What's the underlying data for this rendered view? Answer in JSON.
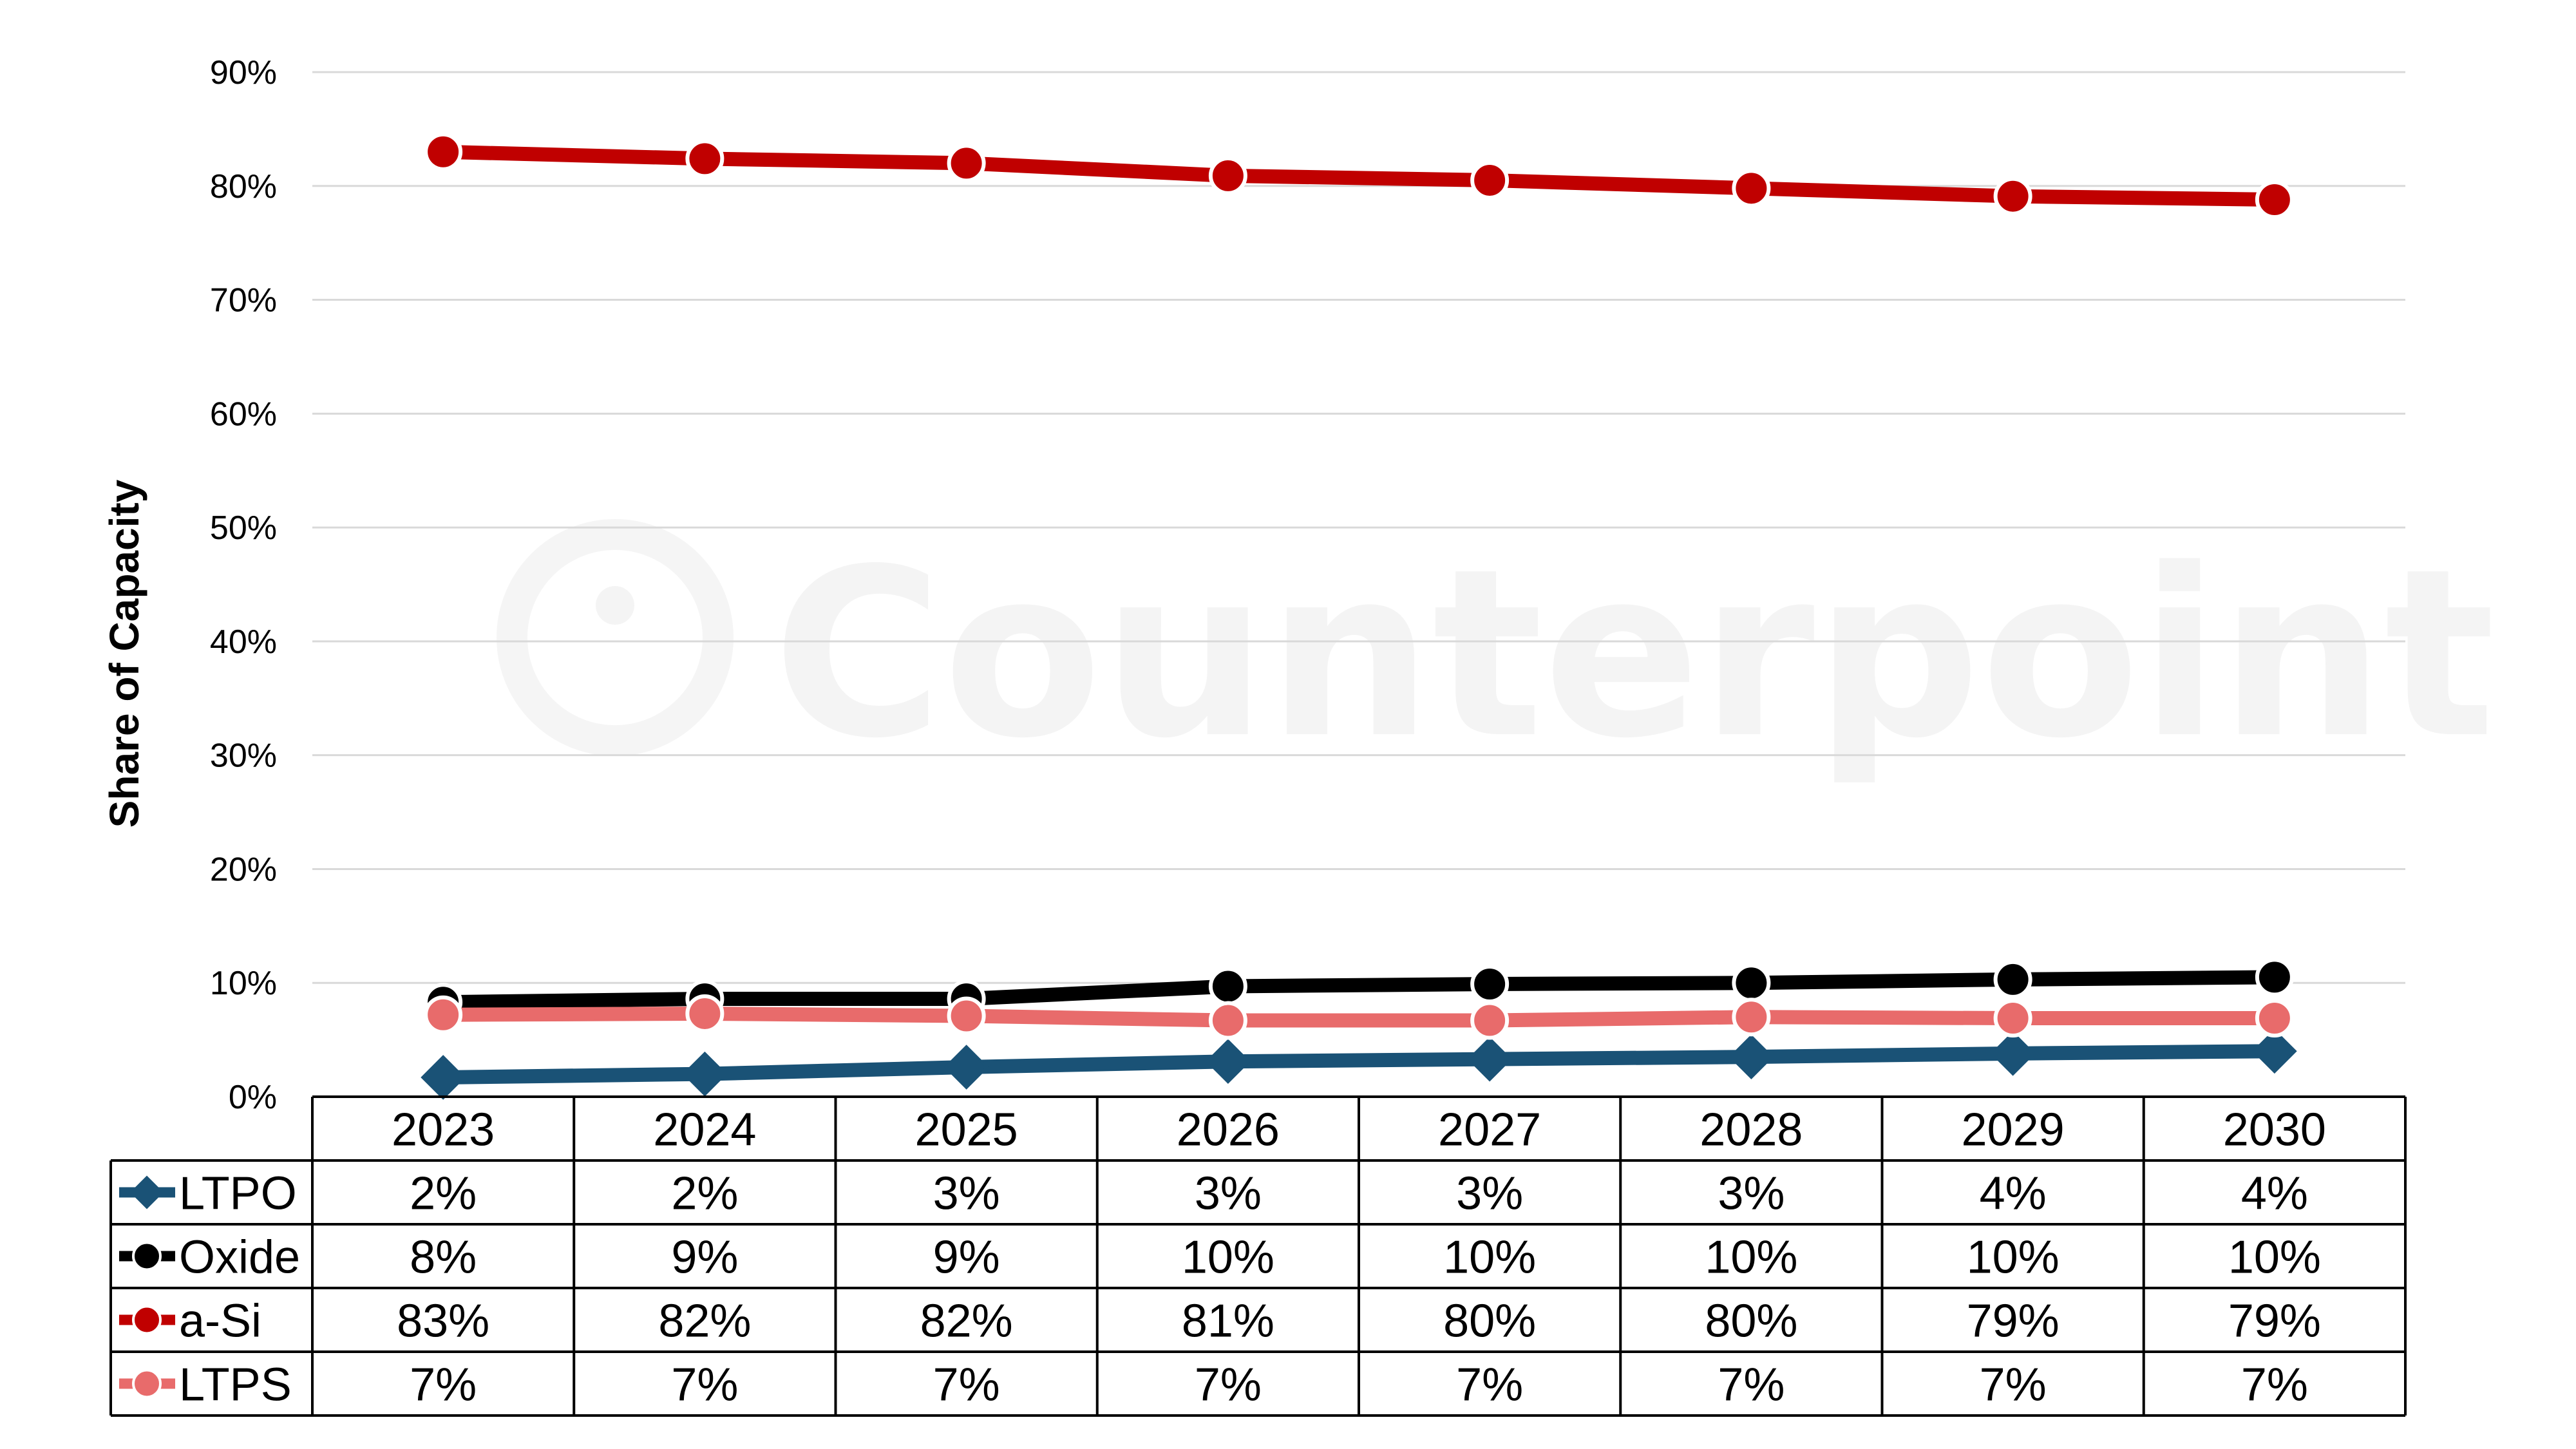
{
  "watermark": "Counterpoint",
  "chart_data": {
    "type": "line",
    "ylabel": "Share of Capacity",
    "ylim": [
      0,
      90
    ],
    "yticks": [
      "0%",
      "10%",
      "20%",
      "30%",
      "40%",
      "50%",
      "60%",
      "70%",
      "80%",
      "90%"
    ],
    "categories": [
      "2023",
      "2024",
      "2025",
      "2026",
      "2027",
      "2028",
      "2029",
      "2030"
    ],
    "grid": true,
    "legend": "data table below plot",
    "series": [
      {
        "name": "LTPO",
        "color": "#1a5276",
        "marker": "diamond",
        "values": [
          1.7,
          2.0,
          2.6,
          3.1,
          3.3,
          3.5,
          3.8,
          4.0
        ],
        "labels": [
          "2%",
          "2%",
          "3%",
          "3%",
          "3%",
          "3%",
          "4%",
          "4%"
        ]
      },
      {
        "name": "Oxide",
        "color": "#000000",
        "marker": "circle",
        "values": [
          8.3,
          8.6,
          8.6,
          9.7,
          9.9,
          10.0,
          10.3,
          10.5
        ],
        "labels": [
          "8%",
          "9%",
          "9%",
          "10%",
          "10%",
          "10%",
          "10%",
          "10%"
        ]
      },
      {
        "name": "a-Si",
        "color": "#c00000",
        "marker": "circle",
        "values": [
          83.0,
          82.4,
          82.0,
          80.9,
          80.5,
          79.8,
          79.1,
          78.8
        ],
        "labels": [
          "83%",
          "82%",
          "82%",
          "81%",
          "80%",
          "80%",
          "79%",
          "79%"
        ]
      },
      {
        "name": "LTPS",
        "color": "#e86b6b",
        "marker": "circle",
        "values": [
          7.2,
          7.3,
          7.1,
          6.7,
          6.7,
          7.0,
          6.9,
          6.9
        ],
        "labels": [
          "7%",
          "7%",
          "7%",
          "7%",
          "7%",
          "7%",
          "7%",
          "7%"
        ]
      }
    ]
  }
}
